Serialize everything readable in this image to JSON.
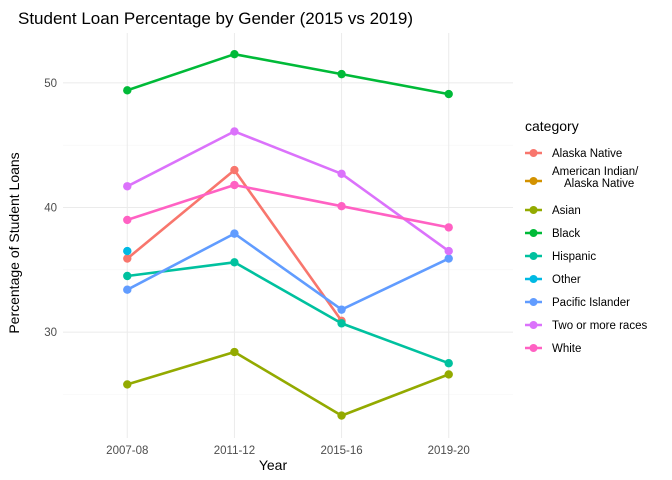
{
  "chart_data": {
    "type": "line",
    "title": "Student Loan Percentage by Gender (2015 vs 2019)",
    "xlabel": "Year",
    "ylabel": "Percentage of Student Loans",
    "categories": [
      "2007-08",
      "2011-12",
      "2015-16",
      "2019-20"
    ],
    "ylim": [
      21.5,
      54
    ],
    "yticks": [
      30,
      40,
      50
    ],
    "grid": true,
    "legend": {
      "title": "category",
      "placement": "right"
    },
    "series": [
      {
        "name": "Alaska Native",
        "color": "#F8766D",
        "values": [
          35.9,
          43.0,
          30.9,
          null
        ]
      },
      {
        "name": "American Indian/\nAlaska Native",
        "color": "#D39200",
        "values": [
          null,
          null,
          null,
          null
        ]
      },
      {
        "name": "Asian",
        "color": "#93AA00",
        "values": [
          25.8,
          28.4,
          23.3,
          26.6
        ]
      },
      {
        "name": "Black",
        "color": "#00BA38",
        "values": [
          49.4,
          52.3,
          50.7,
          49.1
        ]
      },
      {
        "name": "Hispanic",
        "color": "#00C19F",
        "values": [
          34.5,
          35.6,
          30.7,
          27.5
        ]
      },
      {
        "name": "Other",
        "color": "#00B9E3",
        "values": [
          36.5,
          null,
          null,
          null
        ]
      },
      {
        "name": "Pacific Islander",
        "color": "#619CFF",
        "values": [
          33.4,
          37.9,
          31.8,
          35.9
        ]
      },
      {
        "name": "Two or more races",
        "color": "#DB72FB",
        "values": [
          41.7,
          46.1,
          42.7,
          36.5
        ]
      },
      {
        "name": "White",
        "color": "#FF61C3",
        "values": [
          39.0,
          41.8,
          40.1,
          38.4
        ]
      }
    ]
  }
}
